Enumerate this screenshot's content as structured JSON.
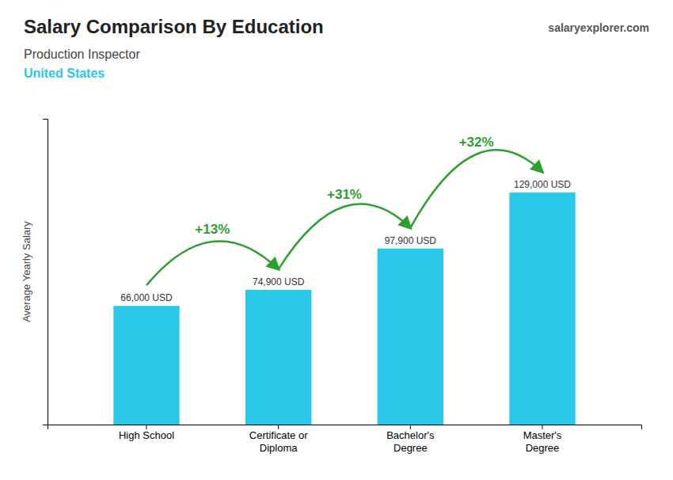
{
  "chart_data": {
    "type": "bar",
    "title": "Salary Comparison By Education",
    "subtitle": [
      "Production Inspector",
      "United States"
    ],
    "source": "salaryexplorer.com",
    "y_label": "Average Yearly Salary",
    "categories": [
      "High School",
      "Certificate or\nDiploma",
      "Bachelor's\nDegree",
      "Master's\nDegree"
    ],
    "values": [
      66000,
      74900,
      97900,
      129000
    ],
    "value_labels": [
      "66,000 USD",
      "74,900 USD",
      "97,900 USD",
      "129,000 USD"
    ],
    "data_labels": true,
    "annotations": [
      "+13%",
      "+31%",
      "+32%"
    ],
    "color": "#29c8e8",
    "ylim": [
      0,
      170000
    ],
    "grid": false,
    "tick_labels": "x"
  }
}
